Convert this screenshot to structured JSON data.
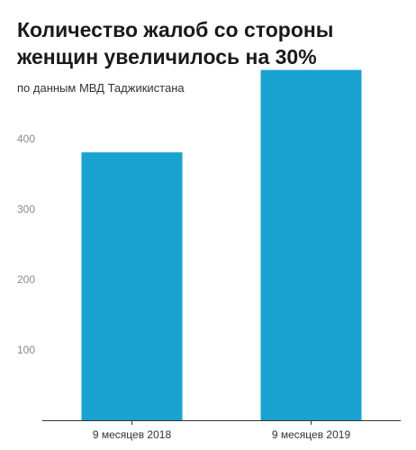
{
  "chart_data": {
    "type": "bar",
    "title": "Количество жалоб со стороны женщин увеличилось на 30%",
    "subtitle": "по данным МВД Таджикистана",
    "categories": [
      "9 месяцев 2018",
      "9 месяцев 2019"
    ],
    "values": [
      381,
      498
    ],
    "yticks": [
      100,
      200,
      300,
      400
    ],
    "ylim": [
      0,
      500
    ],
    "grid": false,
    "bar_color": "#1aa3d0"
  }
}
